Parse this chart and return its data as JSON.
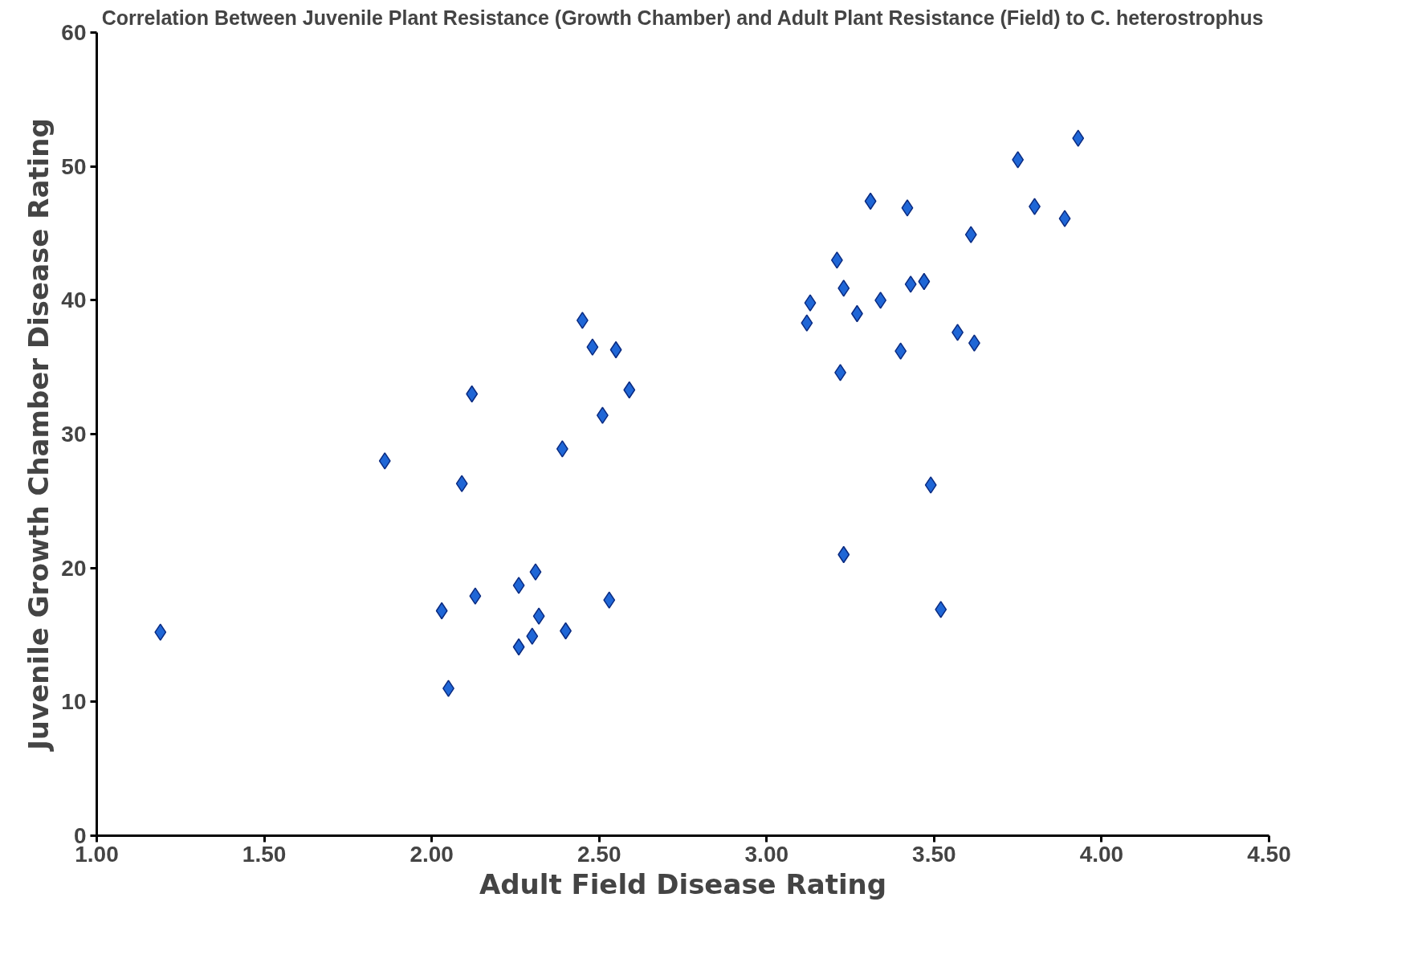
{
  "chart_data": {
    "type": "scatter",
    "title": "Correlation Between Juvenile Plant Resistance (Growth Chamber) and Adult Plant Resistance (Field) to C. heterostrophus",
    "xlabel": "Adult Field Disease Rating",
    "ylabel": "Juvenile Growth Chamber Disease Rating",
    "x": [
      1.19,
      1.86,
      2.03,
      2.05,
      2.09,
      2.12,
      2.13,
      2.26,
      2.26,
      2.3,
      2.31,
      2.32,
      2.39,
      2.4,
      2.45,
      2.48,
      2.51,
      2.53,
      2.55,
      2.59,
      3.12,
      3.13,
      3.21,
      3.22,
      3.23,
      3.23,
      3.27,
      3.31,
      3.34,
      3.4,
      3.42,
      3.43,
      3.47,
      3.49,
      3.52,
      3.57,
      3.61,
      3.62,
      3.75,
      3.8,
      3.89,
      3.93
    ],
    "values": [
      15.2,
      28.0,
      16.8,
      11.0,
      26.3,
      33.0,
      17.9,
      18.7,
      14.1,
      14.9,
      19.7,
      16.4,
      28.9,
      15.3,
      38.5,
      36.5,
      31.4,
      17.6,
      36.3,
      33.3,
      38.3,
      39.8,
      43.0,
      34.6,
      21.0,
      40.9,
      39.0,
      47.4,
      40.0,
      36.2,
      46.9,
      41.2,
      41.4,
      26.2,
      16.9,
      37.6,
      44.9,
      36.8,
      50.5,
      47.0,
      46.1,
      52.1
    ],
    "color": "#1f66d6",
    "marker": "diamond",
    "xlim": [
      1.0,
      4.5
    ],
    "xticks": [
      {
        "value": 1.0,
        "label": "1.00"
      },
      {
        "value": 1.5,
        "label": "1.50"
      },
      {
        "value": 2.0,
        "label": "2.00"
      },
      {
        "value": 2.5,
        "label": "2.50"
      },
      {
        "value": 3.0,
        "label": "3.00"
      },
      {
        "value": 3.5,
        "label": "3.50"
      },
      {
        "value": 4.0,
        "label": "4.00"
      },
      {
        "value": 4.5,
        "label": "4.50"
      }
    ],
    "ylim": [
      0,
      60
    ],
    "yticks": [
      0,
      10,
      20,
      30,
      40,
      50,
      60
    ],
    "grid": false
  }
}
